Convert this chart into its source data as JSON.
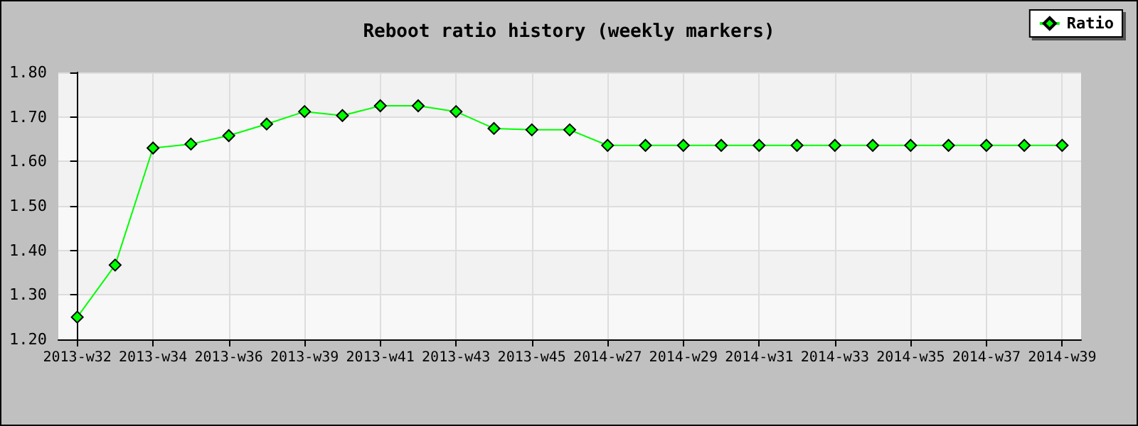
{
  "chart_data": {
    "type": "line",
    "title": "Reboot ratio history (weekly markers)",
    "categories": [
      "2013-w32",
      null,
      "2013-w34",
      null,
      "2013-w36",
      null,
      "2013-w39",
      null,
      "2013-w41",
      null,
      "2013-w43",
      null,
      "2013-w45",
      null,
      "2014-w27",
      null,
      "2014-w29",
      null,
      "2014-w31",
      null,
      "2014-w33",
      null,
      "2014-w35",
      null,
      "2014-w37",
      null,
      "2014-w39"
    ],
    "series": [
      {
        "name": "Ratio",
        "color": "#00ff00",
        "values": [
          1.25,
          1.367,
          1.63,
          1.639,
          1.658,
          1.684,
          1.712,
          1.703,
          1.725,
          1.725,
          1.712,
          1.674,
          1.671,
          1.671,
          1.636,
          1.636,
          1.636,
          1.636,
          1.636,
          1.636,
          1.636,
          1.636,
          1.636,
          1.636,
          1.636,
          1.636,
          1.636
        ]
      }
    ],
    "ylim": [
      1.2,
      1.8
    ],
    "yticks": [
      {
        "value": 1.2,
        "label": "1.20"
      },
      {
        "value": 1.3,
        "label": "1.30"
      },
      {
        "value": 1.4,
        "label": "1.40"
      },
      {
        "value": 1.5,
        "label": "1.50"
      },
      {
        "value": 1.6,
        "label": "1.60"
      },
      {
        "value": 1.7,
        "label": "1.70"
      },
      {
        "value": 1.8,
        "label": "1.80"
      }
    ],
    "grid": true,
    "legend": "top right",
    "marker": "diamond",
    "line_style": "solid"
  }
}
